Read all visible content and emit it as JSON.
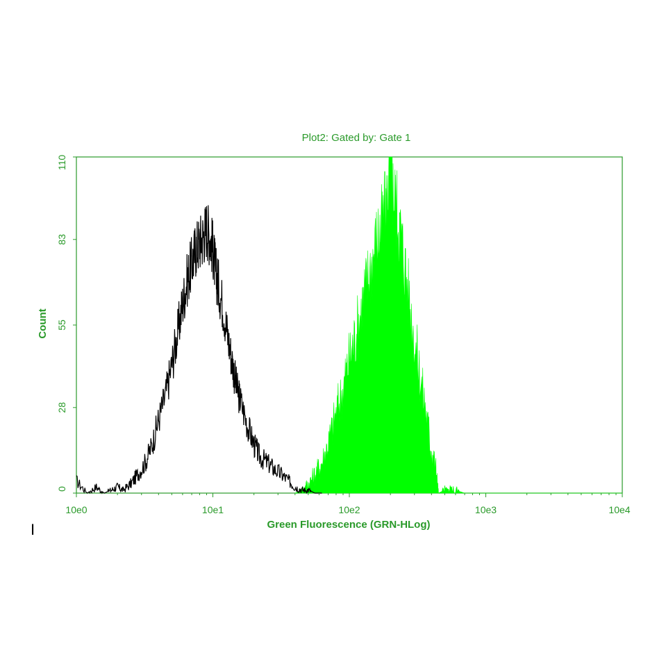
{
  "chart_data": {
    "type": "histogram",
    "title": "Plot2:  Gated by: Gate 1",
    "xlabel": "Green Fluorescence (GRN-HLog)",
    "ylabel": "Count",
    "x_scale": "log10",
    "xlim": [
      1,
      10000
    ],
    "ylim": [
      0,
      110
    ],
    "x_ticks": [
      "10e0",
      "10e1",
      "10e2",
      "10e3",
      "10e4"
    ],
    "y_ticks": [
      "0",
      "28",
      "55",
      "83",
      "110"
    ],
    "grid": false,
    "legend": "none",
    "series": [
      {
        "style": "outline",
        "color": "#000000",
        "x": [
          1.0,
          1.2,
          1.4,
          1.6,
          1.8,
          2.0,
          2.2,
          2.5,
          2.8,
          3.2,
          3.6,
          4.0,
          4.5,
          5.0,
          5.5,
          6.0,
          6.5,
          7.0,
          7.5,
          8.0,
          8.5,
          9.0,
          9.5,
          10.0,
          10.5,
          11.0,
          12.0,
          13.0,
          14.0,
          15.0,
          16.0,
          18.0,
          20.0,
          22.0,
          25.0,
          28.0,
          32.0,
          36.0,
          40.0,
          45.0,
          50.0,
          56.0,
          63.0
        ],
        "values": [
          4,
          0,
          2,
          0,
          1,
          2,
          1,
          3,
          6,
          10,
          16,
          24,
          32,
          42,
          52,
          62,
          70,
          75,
          80,
          82,
          84,
          87,
          84,
          80,
          72,
          68,
          60,
          50,
          42,
          34,
          30,
          22,
          16,
          12,
          10,
          8,
          6,
          4,
          2,
          1,
          1,
          0,
          0
        ]
      },
      {
        "style": "filled",
        "color": "#00ff00",
        "x": [
          40,
          45,
          50,
          56,
          63,
          70,
          80,
          90,
          100,
          112,
          125,
          140,
          158,
          175,
          190,
          200,
          210,
          225,
          250,
          280,
          320,
          360,
          400,
          430,
          450,
          500,
          600,
          700,
          900,
          1200,
          1500,
          2000,
          3000,
          5000,
          8000,
          10000
        ],
        "values": [
          0,
          1,
          3,
          6,
          10,
          16,
          26,
          34,
          44,
          52,
          62,
          72,
          82,
          88,
          95,
          110,
          98,
          92,
          78,
          60,
          42,
          28,
          14,
          8,
          0,
          1,
          1,
          0,
          0,
          0,
          0,
          0,
          0,
          0,
          0,
          0
        ]
      }
    ]
  },
  "cursor_glyph": "I"
}
